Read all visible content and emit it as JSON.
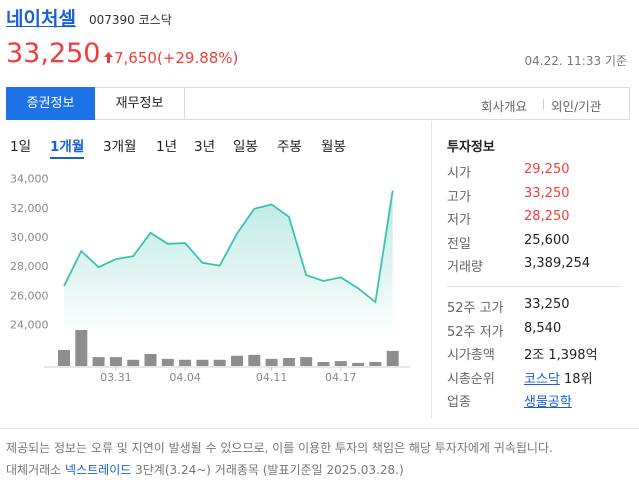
{
  "header": {
    "name": "네이처셀",
    "code": "007390",
    "market": "코스닥",
    "price": "33,250",
    "change": "7,650(+29.88%)",
    "time": "04.22. 11:33 기준"
  },
  "tabs": {
    "items": [
      "증권정보",
      "재무정보"
    ],
    "active": 0,
    "links": [
      "회사개요",
      "외인/기관"
    ]
  },
  "periods": {
    "items": [
      "1일",
      "1개월",
      "3개월",
      "1년",
      "3년",
      "일봉",
      "주봉",
      "월봉"
    ],
    "active": 1
  },
  "chart_data": {
    "type": "line",
    "categories": [
      null,
      null,
      null,
      "03.31",
      null,
      null,
      null,
      "04.04",
      null,
      null,
      null,
      null,
      "04.11",
      null,
      null,
      null,
      "04.17",
      null,
      null,
      null
    ],
    "values": [
      26700,
      29100,
      28000,
      28550,
      28750,
      30350,
      29600,
      29650,
      28300,
      28100,
      30300,
      32000,
      32300,
      31450,
      27450,
      27050,
      27300,
      26550,
      25600,
      33250
    ],
    "color": "#3cc1b0",
    "ylim": [
      23000,
      34800
    ],
    "yticks": [
      {
        "value": 24000,
        "label": "24,000"
      },
      {
        "value": 26000,
        "label": "26,000"
      },
      {
        "value": 28000,
        "label": "28,000"
      },
      {
        "value": 30000,
        "label": "30,000"
      },
      {
        "value": 32000,
        "label": "32,000"
      },
      {
        "value": 34000,
        "label": "34,000"
      }
    ],
    "volume": [
      3600000,
      8100000,
      2000000,
      2000000,
      1400000,
      2700000,
      1600000,
      1400000,
      1400000,
      1400000,
      2300000,
      2500000,
      1600000,
      1800000,
      2000000,
      900000,
      1100000,
      700000,
      900000,
      3389254
    ],
    "volume_color": "#8e8e8e",
    "volume_lim": [
      0,
      9000000
    ]
  },
  "info": {
    "title": "투자정보",
    "groups": [
      [
        {
          "label": "시가",
          "value": "29,250",
          "color": "#f03c3c"
        },
        {
          "label": "고가",
          "value": "33,250",
          "color": "#f03c3c"
        },
        {
          "label": "저가",
          "value": "28,250",
          "color": "#f03c3c"
        },
        {
          "label": "전일",
          "value": "25,600"
        },
        {
          "label": "거래량",
          "value": "3,389,254"
        }
      ],
      [
        {
          "label": "52주 고가",
          "value": "33,250"
        },
        {
          "label": "52주 저가",
          "value": "8,540"
        },
        {
          "label": "시가총액",
          "value": "2조 1,398억"
        },
        {
          "label": "시총순위",
          "link": "코스닥",
          "value": "18위"
        },
        {
          "label": "업종",
          "link": "생물공학"
        }
      ]
    ]
  },
  "footer": {
    "notice": "제공되는 정보는 오류 및 지연이 발생될 수 있으므로, 이를 이용한 투자의 책임은 해당 투자자에게 귀속됩니다.",
    "prefix": "대체거래소",
    "link": "넥스트레이드",
    "suffix": "3단계(3.24~) 거래종목 (발표기준일 2025.03.28.)"
  }
}
